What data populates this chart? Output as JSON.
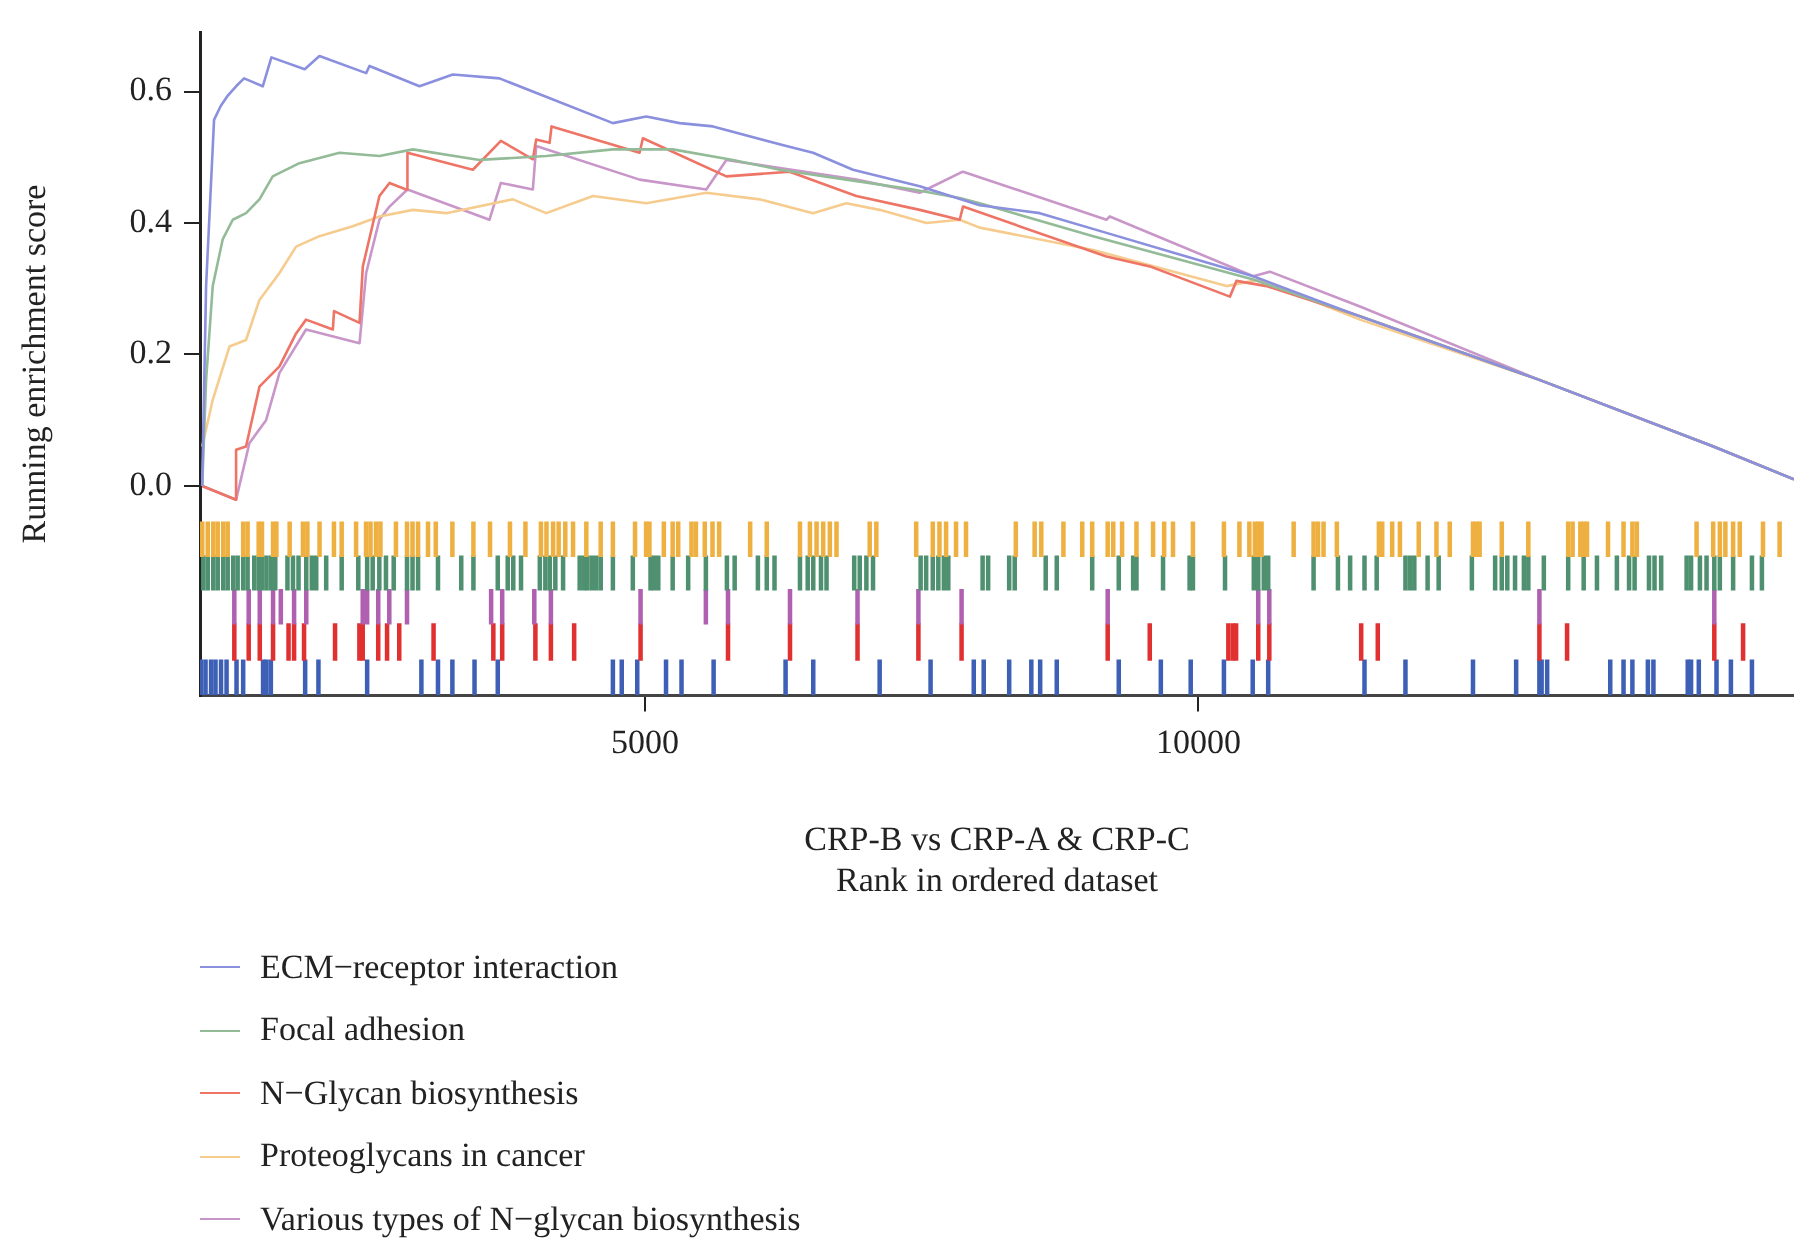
{
  "chart_data": {
    "type": "line",
    "xlabel": "CRP-B vs CRP-A & CRP-C\nRank in ordered dataset",
    "ylabel": "Running enrichment score",
    "xlim": [
      980,
      15380
    ],
    "ylim": [
      -0.319,
      0.69
    ],
    "xticks": [
      5000,
      10000
    ],
    "yticks": [
      {
        "value": 0,
        "label": "0.0"
      },
      {
        "value": 0.2,
        "label": "0.2"
      },
      {
        "value": 0.4,
        "label": "0.4"
      },
      {
        "value": 0.6,
        "label": "0.6"
      }
    ],
    "legend": "bottom left",
    "series": [
      {
        "name": "ECM−receptor interaction",
        "color": "#8a90de",
        "x": [
          1000,
          1035,
          1107,
          1167,
          1227,
          1306,
          1378,
          1547,
          1625,
          1926,
          2059,
          2481,
          2511,
          2963,
          3264,
          3686,
          4710,
          5011,
          5313,
          5614,
          6277,
          6518,
          6879,
          7482,
          8024,
          8566,
          9169,
          10495,
          11459,
          13086,
          14652,
          15380
        ],
        "values": [
          0.0,
          0.304,
          0.557,
          0.578,
          0.593,
          0.608,
          0.62,
          0.608,
          0.652,
          0.634,
          0.654,
          0.628,
          0.639,
          0.608,
          0.626,
          0.62,
          0.552,
          0.562,
          0.552,
          0.547,
          0.517,
          0.507,
          0.481,
          0.456,
          0.427,
          0.415,
          0.385,
          0.319,
          0.258,
          0.161,
          0.06,
          0.01
        ]
      },
      {
        "name": "Focal adhesion",
        "color": "#94bb98",
        "x": [
          1000,
          1035,
          1095,
          1185,
          1276,
          1396,
          1517,
          1637,
          1878,
          2240,
          2601,
          2903,
          3505,
          4108,
          4710,
          5252,
          5795,
          6217,
          6819,
          7422,
          7843,
          8024,
          9049,
          10495,
          11459,
          13086,
          14652,
          15380
        ],
        "values": [
          0.0,
          0.161,
          0.304,
          0.375,
          0.405,
          0.415,
          0.436,
          0.471,
          0.491,
          0.507,
          0.502,
          0.512,
          0.496,
          0.502,
          0.512,
          0.512,
          0.496,
          0.481,
          0.466,
          0.451,
          0.438,
          0.43,
          0.38,
          0.314,
          0.258,
          0.161,
          0.06,
          0.01
        ]
      },
      {
        "name": "N−Glycan biosynthesis",
        "color": "#ee7466",
        "x": [
          1000,
          1306,
          1306,
          1396,
          1517,
          1698,
          1848,
          1938,
          2180,
          2191,
          2421,
          2451,
          2601,
          2692,
          2842,
          2854,
          3445,
          3698,
          3987,
          4017,
          4138,
          4156,
          4951,
          4981,
          5735,
          6307,
          6909,
          7482,
          7843,
          7873,
          9169,
          9561,
          10284,
          10344,
          10615,
          11459,
          13086,
          14652,
          15380
        ],
        "values": [
          0.0,
          -0.021,
          0.055,
          0.06,
          0.151,
          0.182,
          0.232,
          0.253,
          0.238,
          0.266,
          0.248,
          0.334,
          0.441,
          0.461,
          0.451,
          0.507,
          0.481,
          0.525,
          0.497,
          0.527,
          0.522,
          0.547,
          0.507,
          0.529,
          0.471,
          0.478,
          0.441,
          0.42,
          0.405,
          0.425,
          0.349,
          0.334,
          0.288,
          0.312,
          0.304,
          0.258,
          0.161,
          0.06,
          0.01
        ]
      },
      {
        "name": "Proteoglycans in cancer",
        "color": "#f6cc8e",
        "x": [
          1000,
          1095,
          1246,
          1396,
          1517,
          1698,
          1848,
          2059,
          2360,
          2601,
          2903,
          3204,
          3806,
          4108,
          4530,
          5011,
          5554,
          6036,
          6518,
          6819,
          7120,
          7542,
          7843,
          8024,
          9049,
          10254,
          10555,
          11459,
          13086,
          14652,
          15380
        ],
        "values": [
          0.06,
          0.131,
          0.212,
          0.222,
          0.283,
          0.324,
          0.364,
          0.38,
          0.395,
          0.41,
          0.42,
          0.415,
          0.436,
          0.415,
          0.441,
          0.43,
          0.446,
          0.436,
          0.415,
          0.43,
          0.42,
          0.4,
          0.405,
          0.393,
          0.359,
          0.304,
          0.314,
          0.253,
          0.161,
          0.06,
          0.01
        ]
      },
      {
        "name": "Various types of N−glycan biosynthesis",
        "color": "#c896c8",
        "x": [
          1000,
          1306,
          1426,
          1577,
          1698,
          1938,
          2421,
          2481,
          2601,
          2692,
          2854,
          3595,
          3698,
          3987,
          4017,
          4951,
          5554,
          5735,
          6909,
          7482,
          7843,
          7873,
          9169,
          9199,
          10495,
          10645,
          11459,
          13086,
          14652,
          15380
        ],
        "values": [
          0.0,
          -0.021,
          0.065,
          0.1,
          0.172,
          0.238,
          0.217,
          0.324,
          0.405,
          0.425,
          0.451,
          0.405,
          0.461,
          0.451,
          0.517,
          0.466,
          0.451,
          0.496,
          0.466,
          0.446,
          0.476,
          0.478,
          0.405,
          0.41,
          0.319,
          0.326,
          0.273,
          0.161,
          0.06,
          0.01
        ]
      },
      {
        "type": "bar",
        "color": "#eeb040",
        "x": [
          1000,
          1050,
          1100,
          1140,
          1190,
          1230,
          1370,
          1410,
          1510,
          1540,
          1640,
          1670,
          1790,
          1910,
          1950,
          2060,
          2190,
          2260,
          2390,
          2480,
          2520,
          2570,
          2610,
          2750,
          2850,
          2900,
          2950,
          3040,
          3110,
          3260,
          3450,
          3600,
          3780,
          3920,
          4060,
          4110,
          4170,
          4220,
          4280,
          4350,
          4470,
          4600,
          4710,
          4910,
          5010,
          5040,
          5170,
          5250,
          5300,
          5420,
          5460,
          5540,
          5610,
          5670,
          5950,
          6100,
          6400,
          6490,
          6550,
          6610,
          6670,
          6730,
          7030,
          7090,
          7450,
          7600,
          7660,
          7720,
          7810,
          7900,
          8350,
          8520,
          8580,
          8780,
          8950,
          9040,
          9180,
          9230,
          9310,
          9440,
          9590,
          9690,
          9770,
          9950,
          10230,
          10370,
          10460,
          10510,
          10540,
          10570,
          10860,
          11040,
          11080,
          11130,
          11250,
          11630,
          11660,
          11750,
          11820,
          11990,
          12150,
          12270,
          12480,
          12510,
          12540,
          12740,
          12980,
          13340,
          13380,
          13450,
          13480,
          13510,
          13700,
          13840,
          13920,
          13960,
          14500,
          14650,
          14710,
          14760,
          14830,
          14890,
          15100,
          15250
        ],
        "values": [
          0.052,
          0.052,
          0.052,
          0.052,
          0.052,
          0.052,
          0.052,
          0.052,
          0.052,
          0.052,
          0.052,
          0.052,
          0.052,
          0.052,
          0.052,
          0.052,
          0.052,
          0.052,
          0.052,
          0.052,
          0.052,
          0.052,
          0.052,
          0.052,
          0.052,
          0.052,
          0.052,
          0.052,
          0.052,
          0.052,
          0.052,
          0.052,
          0.052,
          0.052,
          0.052,
          0.052,
          0.052,
          0.052,
          0.052,
          0.052,
          0.052,
          0.052,
          0.052,
          0.052,
          0.052,
          0.052,
          0.052,
          0.052,
          0.052,
          0.052,
          0.052,
          0.052,
          0.052,
          0.052,
          0.052,
          0.052,
          0.052,
          0.052,
          0.052,
          0.052,
          0.052,
          0.052,
          0.052,
          0.052,
          0.052,
          0.052,
          0.052,
          0.052,
          0.052,
          0.052,
          0.052,
          0.052,
          0.052,
          0.052,
          0.052,
          0.052,
          0.052,
          0.052,
          0.052,
          0.052,
          0.052,
          0.052,
          0.052,
          0.052,
          0.052,
          0.052,
          0.052,
          0.052,
          0.052,
          0.052,
          0.052,
          0.052,
          0.052,
          0.052,
          0.052,
          0.052,
          0.052,
          0.052,
          0.052,
          0.052,
          0.052,
          0.052,
          0.052,
          0.052,
          0.052,
          0.052,
          0.052,
          0.052,
          0.052,
          0.052,
          0.052,
          0.052,
          0.052,
          0.052,
          0.052,
          0.052,
          0.052,
          0.052,
          0.052,
          0.052,
          0.052,
          0.052,
          0.052,
          0.052
        ],
        "base": [
          -0.107,
          -0.107,
          -0.107,
          -0.107,
          -0.107,
          -0.107,
          -0.107,
          -0.107,
          -0.107,
          -0.107,
          -0.107,
          -0.107,
          -0.107,
          -0.107,
          -0.107,
          -0.107,
          -0.107,
          -0.107,
          -0.107,
          -0.107,
          -0.107,
          -0.107,
          -0.107,
          -0.107,
          -0.107,
          -0.107,
          -0.107,
          -0.107,
          -0.107,
          -0.107,
          -0.107,
          -0.107,
          -0.107,
          -0.107,
          -0.107,
          -0.107,
          -0.107,
          -0.107,
          -0.107,
          -0.107,
          -0.107,
          -0.107,
          -0.107,
          -0.107,
          -0.107,
          -0.107,
          -0.107,
          -0.107,
          -0.107,
          -0.107,
          -0.107,
          -0.107,
          -0.107,
          -0.107,
          -0.107,
          -0.107,
          -0.107,
          -0.107,
          -0.107,
          -0.107,
          -0.107,
          -0.107,
          -0.107,
          -0.107,
          -0.107,
          -0.107,
          -0.107,
          -0.107,
          -0.107,
          -0.107,
          -0.107,
          -0.107,
          -0.107,
          -0.107,
          -0.107,
          -0.107,
          -0.107,
          -0.107,
          -0.107,
          -0.107,
          -0.107,
          -0.107,
          -0.107,
          -0.107,
          -0.107,
          -0.107,
          -0.107,
          -0.107,
          -0.107,
          -0.107,
          -0.107,
          -0.107,
          -0.107,
          -0.107,
          -0.107,
          -0.107,
          -0.107,
          -0.107,
          -0.107,
          -0.107,
          -0.107,
          -0.107,
          -0.107,
          -0.107,
          -0.107,
          -0.107,
          -0.107,
          -0.107,
          -0.107,
          -0.107,
          -0.107,
          -0.107,
          -0.107,
          -0.107,
          -0.107,
          -0.107,
          -0.107,
          -0.107,
          -0.107,
          -0.107,
          -0.107,
          -0.107,
          -0.107,
          -0.107
        ]
      },
      {
        "type": "bar",
        "color": "#4e9070",
        "x": [
          1010,
          1050,
          1100,
          1140,
          1190,
          1230,
          1280,
          1320,
          1370,
          1410,
          1470,
          1510,
          1540,
          1580,
          1620,
          1660,
          1770,
          1820,
          1870,
          1940,
          1990,
          2030,
          2120,
          2260,
          2410,
          2490,
          2540,
          2600,
          2660,
          2730,
          2850,
          2900,
          2950,
          3130,
          3340,
          3450,
          3670,
          3760,
          3810,
          3880,
          4050,
          4100,
          4140,
          4190,
          4260,
          4410,
          4450,
          4480,
          4520,
          4560,
          4600,
          4710,
          4890,
          5050,
          5080,
          5120,
          5250,
          5390,
          5550,
          5740,
          5810,
          6020,
          6100,
          6170,
          6400,
          6470,
          6520,
          6590,
          6640,
          6890,
          6940,
          7000,
          7060,
          7490,
          7540,
          7600,
          7650,
          7700,
          7740,
          8050,
          8100,
          8290,
          8340,
          8620,
          8720,
          9040,
          9280,
          9410,
          9440,
          9680,
          9920,
          9950,
          10240,
          10500,
          10540,
          10590,
          10630,
          11040,
          11260,
          11370,
          11500,
          11610,
          11870,
          11910,
          11950,
          12070,
          12170,
          12470,
          12680,
          12740,
          12790,
          12860,
          12940,
          12980,
          13120,
          13340,
          13480,
          13600,
          13780,
          13890,
          13940,
          14070,
          14120,
          14180,
          14410,
          14450,
          14530,
          14590,
          14660,
          14710,
          14830,
          15000,
          15090
        ],
        "values": [
          0.051,
          0.051,
          0.051,
          0.051,
          0.051,
          0.051,
          0.051,
          0.051,
          0.051,
          0.051,
          0.051,
          0.051,
          0.051,
          0.051,
          0.051,
          0.051,
          0.051,
          0.051,
          0.051,
          0.051,
          0.051,
          0.051,
          0.051,
          0.051,
          0.051,
          0.051,
          0.051,
          0.051,
          0.051,
          0.051,
          0.051,
          0.051,
          0.051,
          0.051,
          0.051,
          0.051,
          0.051,
          0.051,
          0.051,
          0.051,
          0.051,
          0.051,
          0.051,
          0.051,
          0.051,
          0.051,
          0.051,
          0.051,
          0.051,
          0.051,
          0.051,
          0.051,
          0.051,
          0.051,
          0.051,
          0.051,
          0.051,
          0.051,
          0.051,
          0.051,
          0.051,
          0.051,
          0.051,
          0.051,
          0.051,
          0.051,
          0.051,
          0.051,
          0.051,
          0.051,
          0.051,
          0.051,
          0.051,
          0.051,
          0.051,
          0.051,
          0.051,
          0.051,
          0.051,
          0.051,
          0.051,
          0.051,
          0.051,
          0.051,
          0.051,
          0.051,
          0.051,
          0.051,
          0.051,
          0.051,
          0.051,
          0.051,
          0.051,
          0.051,
          0.051,
          0.051,
          0.051,
          0.051,
          0.051,
          0.051,
          0.051,
          0.051,
          0.051,
          0.051,
          0.051,
          0.051,
          0.051,
          0.051,
          0.051,
          0.051,
          0.051,
          0.051,
          0.051,
          0.051,
          0.051,
          0.051,
          0.051,
          0.051,
          0.051,
          0.051,
          0.051,
          0.051,
          0.051,
          0.051,
          0.051,
          0.051,
          0.051,
          0.051,
          0.051,
          0.051,
          0.051,
          0.051,
          0.051
        ],
        "base": [
          -0.158,
          -0.158,
          -0.158,
          -0.158,
          -0.158,
          -0.158,
          -0.158,
          -0.158,
          -0.158,
          -0.158,
          -0.158,
          -0.158,
          -0.158,
          -0.158,
          -0.158,
          -0.158,
          -0.158,
          -0.158,
          -0.158,
          -0.158,
          -0.158,
          -0.158,
          -0.158,
          -0.158,
          -0.158,
          -0.158,
          -0.158,
          -0.158,
          -0.158,
          -0.158,
          -0.158,
          -0.158,
          -0.158,
          -0.158,
          -0.158,
          -0.158,
          -0.158,
          -0.158,
          -0.158,
          -0.158,
          -0.158,
          -0.158,
          -0.158,
          -0.158,
          -0.158,
          -0.158,
          -0.158,
          -0.158,
          -0.158,
          -0.158,
          -0.158,
          -0.158,
          -0.158,
          -0.158,
          -0.158,
          -0.158,
          -0.158,
          -0.158,
          -0.158,
          -0.158,
          -0.158,
          -0.158,
          -0.158,
          -0.158,
          -0.158,
          -0.158,
          -0.158,
          -0.158,
          -0.158,
          -0.158,
          -0.158,
          -0.158,
          -0.158,
          -0.158,
          -0.158,
          -0.158,
          -0.158,
          -0.158,
          -0.158,
          -0.158,
          -0.158,
          -0.158,
          -0.158,
          -0.158,
          -0.158,
          -0.158,
          -0.158,
          -0.158,
          -0.158,
          -0.158,
          -0.158,
          -0.158,
          -0.158,
          -0.158,
          -0.158,
          -0.158,
          -0.158,
          -0.158,
          -0.158,
          -0.158,
          -0.158,
          -0.158,
          -0.158,
          -0.158,
          -0.158,
          -0.158,
          -0.158,
          -0.158,
          -0.158,
          -0.158,
          -0.158,
          -0.158,
          -0.158,
          -0.158,
          -0.158,
          -0.158,
          -0.158,
          -0.158,
          -0.158,
          -0.158,
          -0.158,
          -0.158,
          -0.158,
          -0.158,
          -0.158,
          -0.158,
          -0.158,
          -0.158,
          -0.158,
          -0.158,
          -0.158,
          -0.158,
          -0.158
        ]
      },
      {
        "type": "bar",
        "color": "#b060b0",
        "x": [
          1290,
          1420,
          1520,
          1640,
          1710,
          1830,
          1940,
          2450,
          2490,
          2590,
          2690,
          2850,
          3610,
          3710,
          4000,
          4150,
          4960,
          5550,
          5750,
          6310,
          6920,
          7470,
          7860,
          9180,
          10540,
          10640,
          13080,
          14660
        ],
        "values": [
          0.052,
          0.052,
          0.052,
          0.052,
          0.052,
          0.052,
          0.052,
          0.052,
          0.052,
          0.052,
          0.052,
          0.052,
          0.052,
          0.052,
          0.052,
          0.052,
          0.052,
          0.052,
          0.052,
          0.052,
          0.052,
          0.052,
          0.052,
          0.052,
          0.052,
          0.052,
          0.052,
          0.052
        ],
        "base": [
          -0.21,
          -0.21,
          -0.21,
          -0.21,
          -0.21,
          -0.21,
          -0.21,
          -0.21,
          -0.21,
          -0.21,
          -0.21,
          -0.21,
          -0.21,
          -0.21,
          -0.21,
          -0.21,
          -0.21,
          -0.21,
          -0.21,
          -0.21,
          -0.21,
          -0.21,
          -0.21,
          -0.21,
          -0.21,
          -0.21,
          -0.21,
          -0.21
        ]
      },
      {
        "type": "bar",
        "color": "#e03030",
        "x": [
          1290,
          1420,
          1520,
          1640,
          1780,
          1830,
          1920,
          2200,
          2420,
          2450,
          2590,
          2670,
          2780,
          3090,
          3630,
          3710,
          4010,
          4150,
          4360,
          4960,
          5750,
          6310,
          6920,
          7470,
          7860,
          9180,
          9560,
          10270,
          10310,
          10340,
          10540,
          10640,
          11470,
          11620,
          13080,
          13330,
          14660,
          14920
        ],
        "values": [
          0.055,
          0.055,
          0.055,
          0.055,
          0.055,
          0.055,
          0.055,
          0.055,
          0.055,
          0.055,
          0.055,
          0.055,
          0.055,
          0.055,
          0.055,
          0.055,
          0.055,
          0.055,
          0.055,
          0.055,
          0.055,
          0.055,
          0.055,
          0.055,
          0.055,
          0.055,
          0.055,
          0.055,
          0.055,
          0.055,
          0.055,
          0.055,
          0.055,
          0.055,
          0.055,
          0.055,
          0.055,
          0.055
        ],
        "base": [
          -0.265,
          -0.265,
          -0.265,
          -0.265,
          -0.265,
          -0.265,
          -0.265,
          -0.265,
          -0.265,
          -0.265,
          -0.265,
          -0.265,
          -0.265,
          -0.265,
          -0.265,
          -0.265,
          -0.265,
          -0.265,
          -0.265,
          -0.265,
          -0.265,
          -0.265,
          -0.265,
          -0.265,
          -0.265,
          -0.265,
          -0.265,
          -0.265,
          -0.265,
          -0.265,
          -0.265,
          -0.265,
          -0.265,
          -0.265,
          -0.265,
          -0.265,
          -0.265,
          -0.265
        ]
      },
      {
        "type": "bar",
        "color": "#3d5fb5",
        "x": [
          990,
          1030,
          1080,
          1120,
          1170,
          1220,
          1310,
          1370,
          1550,
          1580,
          1620,
          1930,
          2050,
          2490,
          2980,
          3130,
          3260,
          3460,
          3670,
          4710,
          4790,
          4930,
          5190,
          5330,
          5620,
          6270,
          6520,
          7120,
          7580,
          7970,
          8060,
          8290,
          8490,
          8570,
          8720,
          9280,
          9660,
          9930,
          10230,
          10490,
          10630,
          11500,
          11870,
          12480,
          12870,
          13080,
          13100,
          13150,
          13720,
          13840,
          13920,
          14060,
          14110,
          14420,
          14450,
          14520,
          14680,
          14810,
          15000
        ],
        "values": [
          0.052,
          0.052,
          0.052,
          0.052,
          0.052,
          0.052,
          0.052,
          0.052,
          0.052,
          0.052,
          0.052,
          0.052,
          0.052,
          0.052,
          0.052,
          0.052,
          0.052,
          0.052,
          0.052,
          0.052,
          0.052,
          0.052,
          0.052,
          0.052,
          0.052,
          0.052,
          0.052,
          0.052,
          0.052,
          0.052,
          0.052,
          0.052,
          0.052,
          0.052,
          0.052,
          0.052,
          0.052,
          0.052,
          0.052,
          0.052,
          0.052,
          0.052,
          0.052,
          0.052,
          0.052,
          0.052,
          0.052,
          0.052,
          0.052,
          0.052,
          0.052,
          0.052,
          0.052,
          0.052,
          0.052,
          0.052,
          0.052,
          0.052,
          0.052
        ],
        "base": [
          -0.317,
          -0.317,
          -0.317,
          -0.317,
          -0.317,
          -0.317,
          -0.317,
          -0.317,
          -0.317,
          -0.317,
          -0.317,
          -0.317,
          -0.317,
          -0.317,
          -0.317,
          -0.317,
          -0.317,
          -0.317,
          -0.317,
          -0.317,
          -0.317,
          -0.317,
          -0.317,
          -0.317,
          -0.317,
          -0.317,
          -0.317,
          -0.317,
          -0.317,
          -0.317,
          -0.317,
          -0.317,
          -0.317,
          -0.317,
          -0.317,
          -0.317,
          -0.317,
          -0.317,
          -0.317,
          -0.317,
          -0.317,
          -0.317,
          -0.317,
          -0.317,
          -0.317,
          -0.317,
          -0.317,
          -0.317,
          -0.317,
          -0.317,
          -0.317,
          -0.317,
          -0.317,
          -0.317,
          -0.317,
          -0.317,
          -0.317,
          -0.317,
          -0.317
        ]
      }
    ]
  }
}
